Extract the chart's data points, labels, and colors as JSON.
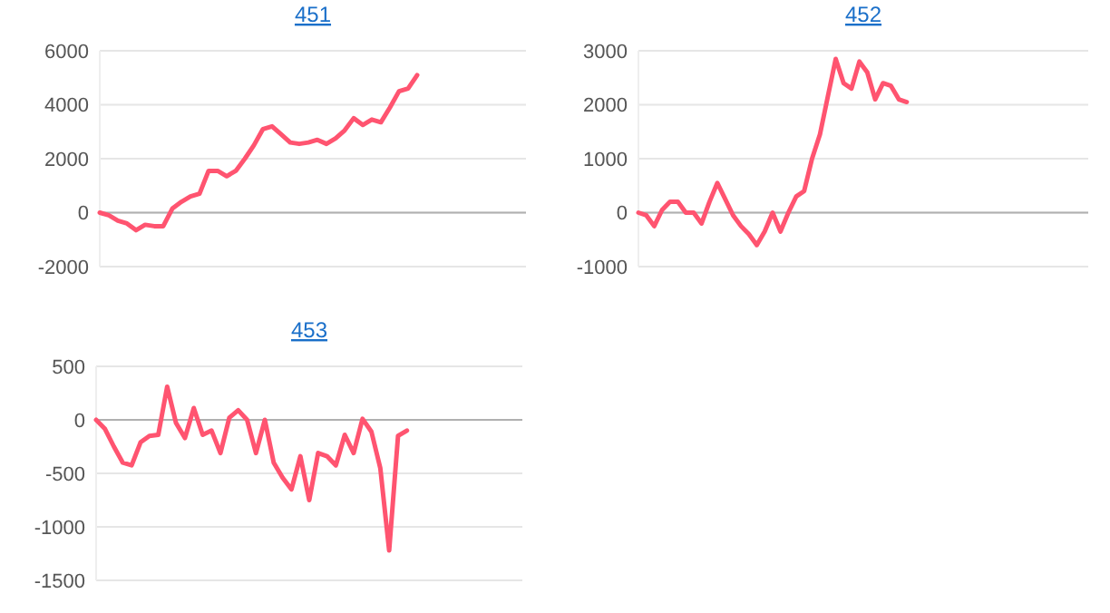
{
  "chart_data": [
    {
      "type": "line",
      "title": "451",
      "grid": "y",
      "ylim": [
        -2000,
        6000
      ],
      "yticks": [
        -2000,
        0,
        2000,
        4000,
        6000
      ],
      "categories": [
        null,
        null,
        null,
        null,
        null,
        null,
        null,
        null,
        null,
        null,
        null,
        null,
        null,
        null,
        null,
        null,
        null,
        null,
        null,
        null,
        null,
        null,
        null,
        null,
        null,
        null,
        null,
        null,
        null,
        null,
        null,
        null,
        null,
        null,
        null,
        null,
        null,
        null,
        null,
        null,
        null,
        null,
        null,
        null,
        null,
        null,
        null,
        null
      ],
      "series": [
        {
          "color": "#ff5470",
          "values": [
            0,
            -100,
            -300,
            -400,
            -650,
            -450,
            -500,
            -500,
            150,
            400,
            600,
            700,
            1550,
            1550,
            1350,
            1550,
            2000,
            2500,
            3100,
            3200,
            2900,
            2600,
            2550,
            2600,
            2700,
            2550,
            2750,
            3050,
            3500,
            3250,
            3450,
            3350,
            3900,
            4500,
            4600,
            5100,
            null,
            null,
            null,
            null,
            null,
            null,
            null,
            null,
            null,
            null,
            null,
            null
          ]
        }
      ]
    },
    {
      "type": "line",
      "title": "452",
      "grid": "y",
      "ylim": [
        -1000,
        3000
      ],
      "yticks": [
        -1000,
        0,
        1000,
        2000,
        3000
      ],
      "categories": [
        null,
        null,
        null,
        null,
        null,
        null,
        null,
        null,
        null,
        null,
        null,
        null,
        null,
        null,
        null,
        null,
        null,
        null,
        null,
        null,
        null,
        null,
        null,
        null,
        null,
        null,
        null,
        null,
        null,
        null,
        null,
        null,
        null,
        null,
        null,
        null,
        null,
        null,
        null,
        null,
        null,
        null,
        null,
        null,
        null,
        null,
        null,
        null,
        null,
        null,
        null,
        null,
        null,
        null,
        null,
        null,
        null,
        null
      ],
      "series": [
        {
          "color": "#ff5470",
          "values": [
            0,
            -50,
            -250,
            50,
            200,
            200,
            0,
            0,
            -200,
            200,
            550,
            250,
            -50,
            -250,
            -400,
            -600,
            -350,
            0,
            -350,
            0,
            300,
            400,
            1000,
            1450,
            2150,
            2850,
            2400,
            2300,
            2800,
            2600,
            2100,
            2400,
            2350,
            2100,
            2050,
            null,
            null,
            null,
            null,
            null,
            null,
            null,
            null,
            null,
            null,
            null,
            null,
            null,
            null,
            null,
            null,
            null,
            null,
            null,
            null,
            null,
            null,
            null
          ]
        }
      ]
    },
    {
      "type": "line",
      "title": "453",
      "grid": "y",
      "ylim": [
        -1500,
        500
      ],
      "yticks": [
        -1500,
        -1000,
        -500,
        0,
        500
      ],
      "categories": [
        null,
        null,
        null,
        null,
        null,
        null,
        null,
        null,
        null,
        null,
        null,
        null,
        null,
        null,
        null,
        null,
        null,
        null,
        null,
        null,
        null,
        null,
        null,
        null,
        null,
        null,
        null,
        null,
        null,
        null,
        null,
        null,
        null,
        null,
        null,
        null,
        null,
        null,
        null,
        null,
        null,
        null,
        null,
        null,
        null,
        null,
        null,
        null,
        null
      ],
      "series": [
        {
          "color": "#ff5470",
          "values": [
            0,
            -85,
            -250,
            -400,
            -425,
            -210,
            -150,
            -140,
            310,
            -30,
            -170,
            110,
            -140,
            -100,
            -310,
            20,
            90,
            0,
            -310,
            0,
            -400,
            -540,
            -650,
            -340,
            -750,
            -310,
            -340,
            -425,
            -140,
            -310,
            10,
            -110,
            -450,
            -1220,
            -150,
            -100,
            null,
            null,
            null,
            null,
            null,
            null,
            null,
            null,
            null,
            null,
            null,
            null,
            null
          ]
        }
      ]
    }
  ]
}
